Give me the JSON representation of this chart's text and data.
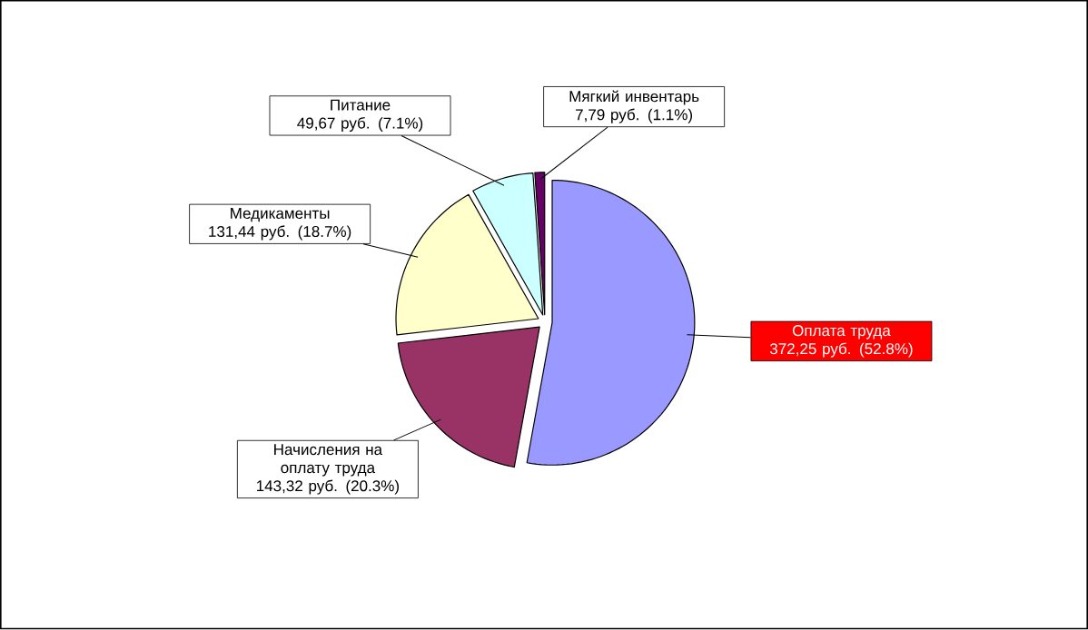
{
  "chart_data": {
    "type": "pie",
    "categories": [
      "Оплата труда",
      "Начисления на оплату труда",
      "Медикаменты",
      "Питание",
      "Мягкий инвентарь"
    ],
    "values": [
      372.25,
      143.32,
      131.44,
      49.67,
      7.79
    ],
    "value_labels": [
      "372,25 руб. (52.8%)",
      "143,32 руб. (20.3%)",
      "131,44 руб. (18.7%)",
      "49,67 руб. (7.1%)",
      "7,79 руб. (1.1%)"
    ],
    "colors": [
      "#9999ff",
      "#993366",
      "#ffffcc",
      "#ccffff",
      "#660066"
    ]
  }
}
